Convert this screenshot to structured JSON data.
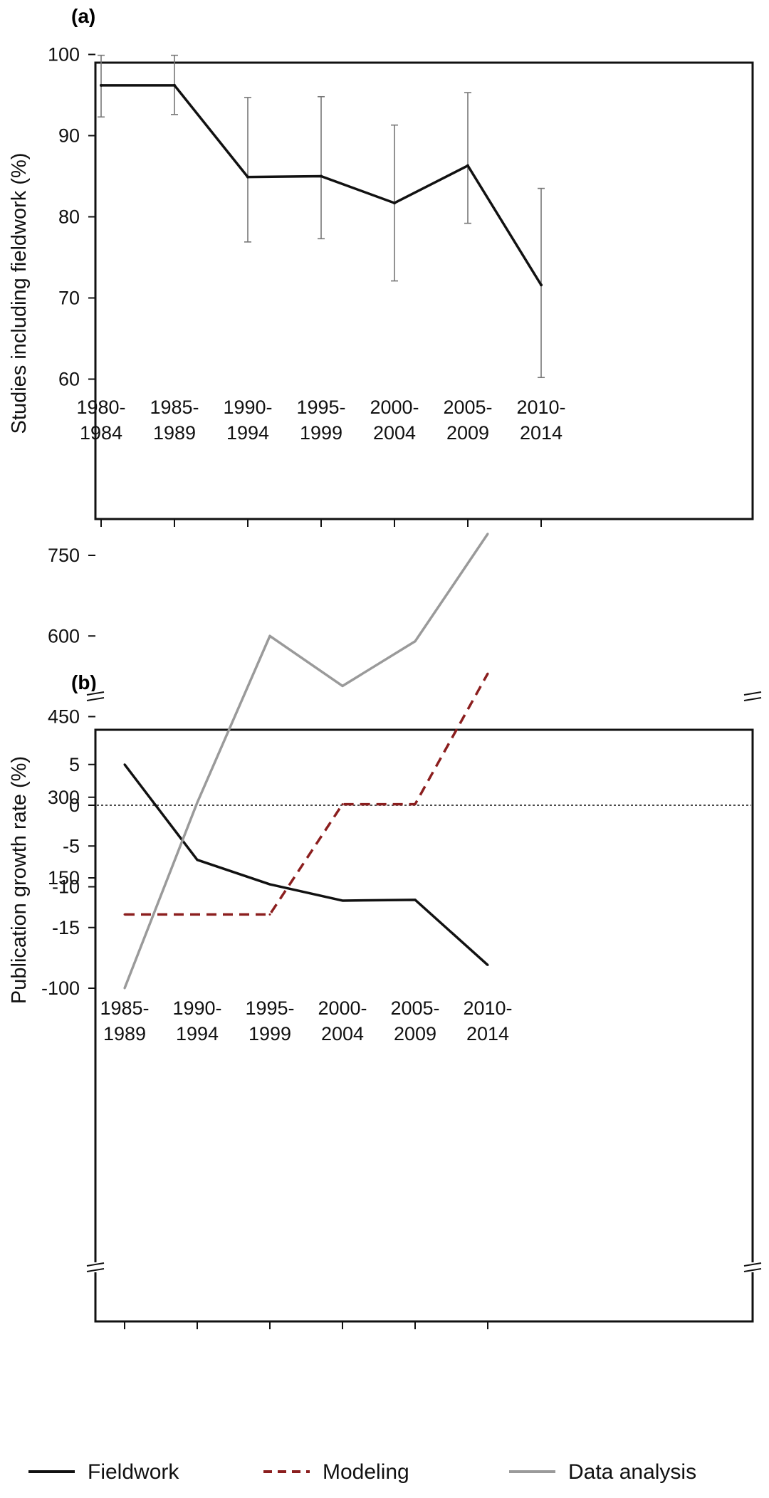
{
  "chart_data": [
    {
      "panel": "(a)",
      "type": "line",
      "ylabel": "Studies including fieldwork (%)",
      "ylim": [
        58,
        102
      ],
      "yticks": [
        60,
        70,
        80,
        90,
        100
      ],
      "categories": [
        "1980-\n1984",
        "1985-\n1989",
        "1990-\n1994",
        "1995-\n1999",
        "2000-\n2004",
        "2005-\n2009",
        "2010-\n2014"
      ],
      "series": [
        {
          "name": "Fieldwork",
          "color": "#111111",
          "values": [
            96.2,
            96.2,
            84.9,
            85.0,
            81.7,
            86.3,
            71.6
          ],
          "err_low": [
            92.3,
            92.6,
            76.9,
            77.3,
            72.1,
            79.2,
            60.2
          ],
          "err_high": [
            99.9,
            99.9,
            94.7,
            94.8,
            91.3,
            95.3,
            83.5
          ]
        }
      ],
      "grid": false
    },
    {
      "panel": "(b)",
      "type": "line",
      "ylabel": "Publication growth rate (%)",
      "broken_axis": true,
      "yticks": [
        "750",
        "600",
        "450",
        "300",
        "150",
        "5",
        "0",
        "-5",
        "-10",
        "-15",
        "-100"
      ],
      "categories": [
        "1985-\n1989",
        "1990-\n1994",
        "1995-\n1999",
        "2000-\n2004",
        "2005-\n2009",
        "2010-\n2014"
      ],
      "reference_line": 0,
      "series": [
        {
          "name": "Fieldwork",
          "color": "#111111",
          "dash": "solid",
          "values": [
            5,
            -6.7,
            -9.7,
            -11.7,
            -11.6,
            -19.6
          ]
        },
        {
          "name": "Modeling",
          "color": "#8b1e1e",
          "dash": "dashed",
          "values": [
            82,
            82,
            82,
            287,
            287,
            530
          ]
        },
        {
          "name": "Data analysis",
          "color": "#9a9a9a",
          "dash": "solid",
          "values": [
            -100,
            290,
            600,
            507,
            590,
            790
          ]
        }
      ],
      "grid": false
    }
  ],
  "legend": {
    "placement": "bottom",
    "items": [
      {
        "label": "Fieldwork",
        "color": "#111111",
        "dash": "solid"
      },
      {
        "label": "Modeling",
        "color": "#8b1e1e",
        "dash": "dashed"
      },
      {
        "label": "Data analysis",
        "color": "#9a9a9a",
        "dash": "solid"
      }
    ]
  }
}
